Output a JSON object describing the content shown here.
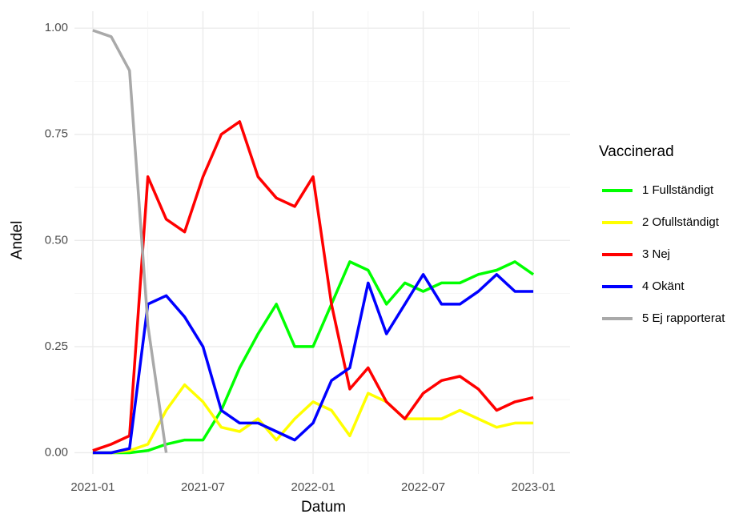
{
  "chart_data": {
    "type": "line",
    "x_label": "Datum",
    "y_label": "Andel",
    "legend_title": "Vaccinerad",
    "x": [
      "2021-01",
      "2021-02",
      "2021-03",
      "2021-04",
      "2021-05",
      "2021-06",
      "2021-07",
      "2021-08",
      "2021-09",
      "2021-10",
      "2021-11",
      "2021-12",
      "2022-01",
      "2022-02",
      "2022-03",
      "2022-04",
      "2022-05",
      "2022-06",
      "2022-07",
      "2022-08",
      "2022-09",
      "2022-10",
      "2022-11",
      "2022-12",
      "2023-01"
    ],
    "series": [
      {
        "name": "1 Fullständigt",
        "color": "#00ff00",
        "values": [
          0,
          0,
          0,
          0.005,
          0.02,
          0.03,
          0.03,
          0.1,
          0.2,
          0.28,
          0.35,
          0.25,
          0.25,
          0.35,
          0.45,
          0.43,
          0.35,
          0.4,
          0.38,
          0.4,
          0.4,
          0.42,
          0.43,
          0.45,
          0.42
        ]
      },
      {
        "name": "2 Ofullständigt",
        "color": "#ffff00",
        "values": [
          0,
          0,
          0.005,
          0.02,
          0.1,
          0.16,
          0.12,
          0.06,
          0.05,
          0.08,
          0.03,
          0.08,
          0.12,
          0.1,
          0.04,
          0.14,
          0.12,
          0.08,
          0.08,
          0.08,
          0.1,
          0.08,
          0.06,
          0.07,
          0.07
        ]
      },
      {
        "name": "3 Nej",
        "color": "#ff0000",
        "values": [
          0.005,
          0.02,
          0.04,
          0.65,
          0.55,
          0.52,
          0.65,
          0.75,
          0.78,
          0.65,
          0.6,
          0.58,
          0.65,
          0.35,
          0.15,
          0.2,
          0.12,
          0.08,
          0.14,
          0.17,
          0.18,
          0.15,
          0.1,
          0.12,
          0.13
        ]
      },
      {
        "name": "4 Okänt",
        "color": "#0000ff",
        "values": [
          0,
          0,
          0.01,
          0.35,
          0.37,
          0.32,
          0.25,
          0.1,
          0.07,
          0.07,
          0.05,
          0.03,
          0.07,
          0.17,
          0.2,
          0.4,
          0.28,
          0.35,
          0.42,
          0.35,
          0.35,
          0.38,
          0.42,
          0.38,
          0.38
        ]
      },
      {
        "name": "5 Ej rapporterat",
        "color": "#a9a9a9",
        "values": [
          0.995,
          0.98,
          0.9,
          0.3,
          0,
          null,
          null,
          null,
          null,
          null,
          null,
          null,
          null,
          null,
          null,
          null,
          null,
          null,
          null,
          null,
          null,
          null,
          null,
          null,
          null
        ]
      }
    ],
    "xlim": [
      "2020-12",
      "2023-03"
    ],
    "xticks": [
      "2021-01",
      "2021-07",
      "2022-01",
      "2022-07",
      "2023-01"
    ],
    "ylim": [
      -0.05,
      1.04
    ],
    "yticks": [
      {
        "value": 0,
        "label": "0.00"
      },
      {
        "value": 0.25,
        "label": "0.25"
      },
      {
        "value": 0.5,
        "label": "0.50"
      },
      {
        "value": 0.75,
        "label": "0.75"
      },
      {
        "value": 1,
        "label": "1.00"
      }
    ],
    "grid": true,
    "legend": "right"
  }
}
